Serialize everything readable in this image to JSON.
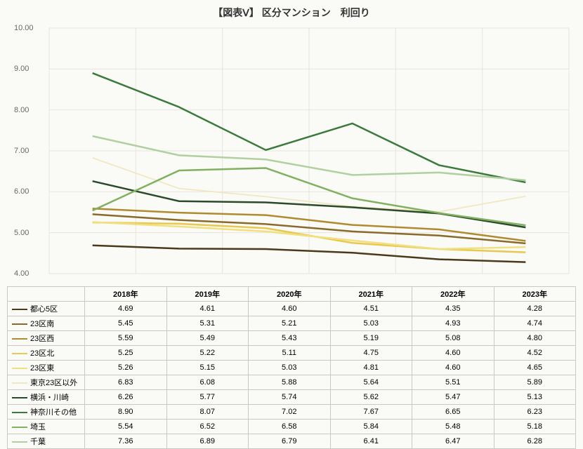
{
  "chart": {
    "title": "【図表Ⅴ】 区分マンション　利回り",
    "type": "line",
    "background_color": "#fafaf7",
    "grid_color": "#e8e4dc",
    "border_color": "#ccc8c0",
    "title_fontsize": 14,
    "label_fontsize": 11,
    "ylim": [
      4.0,
      10.0
    ],
    "ytick_step": 1.0,
    "yticks": [
      "4.00",
      "5.00",
      "6.00",
      "7.00",
      "8.00",
      "9.00",
      "10.00"
    ],
    "x_categories": [
      "2018年",
      "2019年",
      "2020年",
      "2021年",
      "2022年",
      "2023年"
    ],
    "line_width_thick": 2.5,
    "line_width_thin": 1.5,
    "series": [
      {
        "name": "都心5区",
        "color": "#4a3a1a",
        "width": 2.5,
        "values": [
          4.69,
          4.61,
          4.6,
          4.51,
          4.35,
          4.28
        ]
      },
      {
        "name": "23区南",
        "color": "#8a6a2a",
        "width": 2.5,
        "values": [
          5.45,
          5.31,
          5.21,
          5.03,
          4.93,
          4.74
        ]
      },
      {
        "name": "23区西",
        "color": "#b08a30",
        "width": 2.5,
        "values": [
          5.59,
          5.49,
          5.43,
          5.19,
          5.08,
          4.8
        ]
      },
      {
        "name": "23区北",
        "color": "#e8c850",
        "width": 2.5,
        "values": [
          5.25,
          5.22,
          5.11,
          4.75,
          4.6,
          4.52
        ]
      },
      {
        "name": "23区東",
        "color": "#f0e080",
        "width": 2.5,
        "values": [
          5.26,
          5.15,
          5.03,
          4.81,
          4.6,
          4.65
        ]
      },
      {
        "name": "東京23区以外",
        "color": "#f0e8c0",
        "width": 1.8,
        "values": [
          6.83,
          6.08,
          5.88,
          5.64,
          5.51,
          5.89
        ]
      },
      {
        "name": "横浜・川崎",
        "color": "#2a4a2a",
        "width": 2.5,
        "values": [
          6.26,
          5.77,
          5.74,
          5.62,
          5.47,
          5.13
        ]
      },
      {
        "name": "神奈川その他",
        "color": "#3a7a3a",
        "width": 2.5,
        "values": [
          8.9,
          8.07,
          7.02,
          7.67,
          6.65,
          6.23
        ]
      },
      {
        "name": "埼玉",
        "color": "#80b060",
        "width": 2.5,
        "values": [
          5.54,
          6.52,
          6.58,
          5.84,
          5.48,
          5.18
        ]
      },
      {
        "name": "千葉",
        "color": "#b0d0a0",
        "width": 2.5,
        "values": [
          7.36,
          6.89,
          6.79,
          6.41,
          6.47,
          6.28
        ]
      }
    ]
  }
}
